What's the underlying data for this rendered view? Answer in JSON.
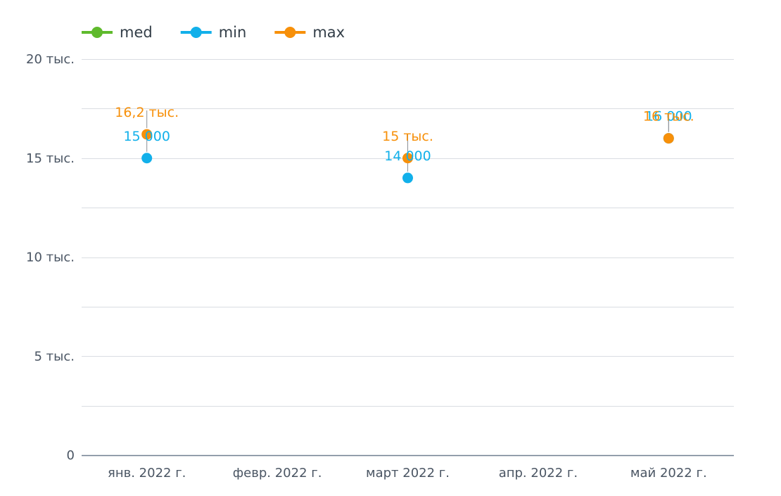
{
  "chart_data": {
    "type": "scatter",
    "categories": [
      "янв. 2022 г.",
      "февр. 2022 г.",
      "март 2022 г.",
      "апр. 2022 г.",
      "май 2022 г."
    ],
    "series": [
      {
        "name": "med",
        "color": "#5fba2c",
        "values": [
          null,
          null,
          null,
          null,
          null
        ],
        "labels": [
          null,
          null,
          null,
          null,
          null
        ]
      },
      {
        "name": "min",
        "color": "#12b0ea",
        "values": [
          15000,
          null,
          14000,
          null,
          16000
        ],
        "labels": [
          "15 000",
          null,
          "14 000",
          null,
          "16 000"
        ]
      },
      {
        "name": "max",
        "color": "#f7900a",
        "values": [
          16200,
          null,
          15000,
          null,
          16000
        ],
        "labels": [
          "16,2 тыс.",
          null,
          "15 тыс.",
          null,
          "16 тыс."
        ]
      }
    ],
    "ylim": [
      0,
      20000
    ],
    "yticks": [
      0,
      5000,
      10000,
      15000,
      20000
    ],
    "ytick_labels": [
      "0",
      "5 тыс.",
      "10 тыс.",
      "15 тыс.",
      "20 тыс."
    ],
    "grid": true,
    "legend_position": "top-left",
    "title": "",
    "xlabel": "",
    "ylabel": ""
  }
}
